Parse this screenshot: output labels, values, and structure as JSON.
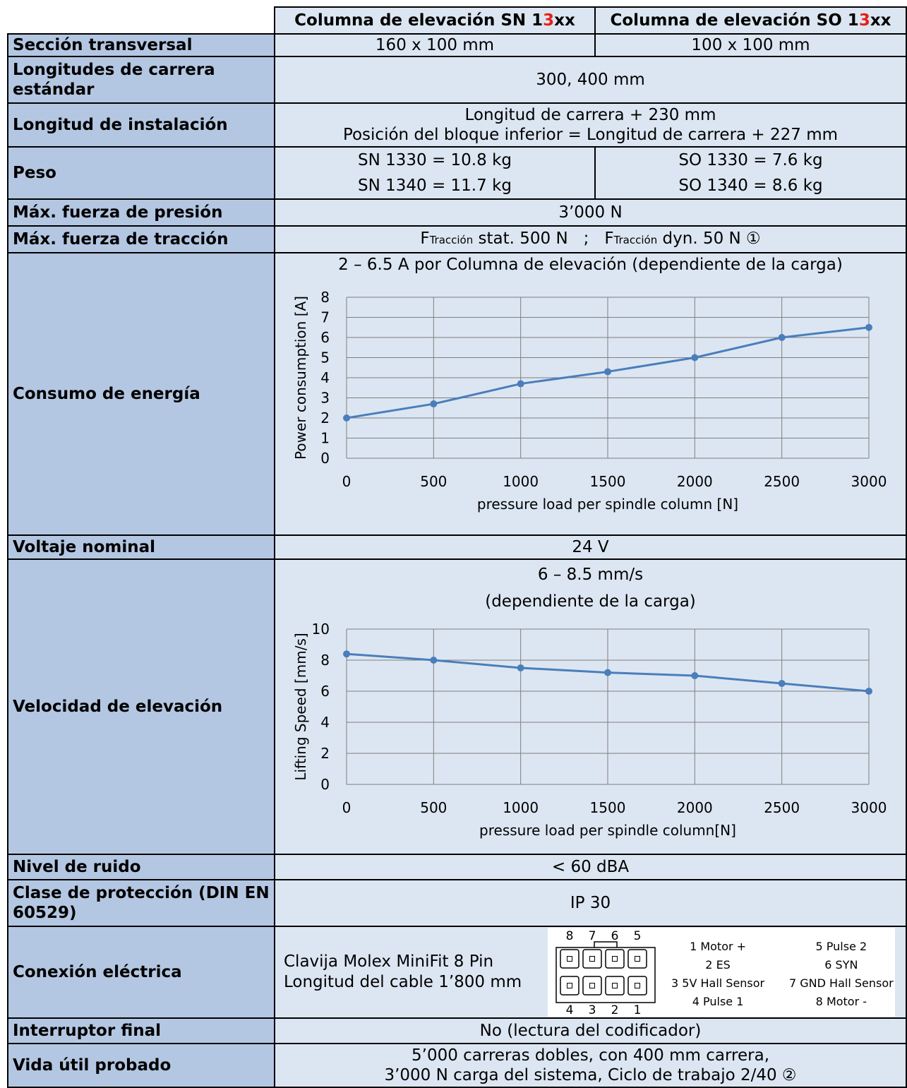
{
  "header": {
    "col1": {
      "pre": "Columna de elevación SN 1",
      "mid": "3",
      "post": "xx"
    },
    "col2": {
      "pre": "Columna de elevación SO 1",
      "mid": "3",
      "post": "xx"
    }
  },
  "rows": {
    "seccion": {
      "label": "Sección transversal",
      "sn": "160 x 100 mm",
      "so": "100 x 100 mm"
    },
    "carrera": {
      "label": "Longitudes de carrera estándar",
      "value": "300, 400 mm"
    },
    "instalacion": {
      "label": "Longitud de instalación",
      "line1": "Longitud de carrera + 230 mm",
      "line2": "Posición del bloque inferior = Longitud de carrera + 227 mm"
    },
    "peso": {
      "label": "Peso",
      "sn1": "SN 1330 = 10.8 kg",
      "sn2": "SN 1340 = 11.7 kg",
      "so1": "SO 1330 = 7.6 kg",
      "so2": "SO 1340 = 8.6 kg"
    },
    "presion": {
      "label": "Máx. fuerza de presión",
      "value": "3’000 N"
    },
    "traccion": {
      "label": "Máx. fuerza de tracción",
      "f1": "F",
      "sub1": "Tracción",
      "t1": " stat. 500 N   ;   ",
      "f2": "F",
      "sub2": "Tracción",
      "t2": " dyn. 50 N ①"
    },
    "consumo": {
      "label": "Consumo de energía",
      "title": "2 – 6.5 A por Columna de elevación (dependiente de la carga)"
    },
    "voltaje": {
      "label": "Voltaje nominal",
      "value": "24 V"
    },
    "velocidad": {
      "label": "Velocidad de elevación",
      "title1": "6 – 8.5 mm/s",
      "title2": "(dependiente de la carga)"
    },
    "ruido": {
      "label": "Nivel de ruido",
      "value": "< 60 dBA"
    },
    "proteccion": {
      "label": "Clase de protección (DIN EN 60529)",
      "value": "IP 30"
    },
    "conexion": {
      "label": "Conexión eléctrica",
      "line1": "Clavija Molex MiniFit 8 Pin",
      "line2": "Longitud del cable 1’800 mm",
      "top_numbers": [
        "8",
        "7",
        "6",
        "5"
      ],
      "bottom_numbers": [
        "4",
        "3",
        "2",
        "1"
      ],
      "pins_left": [
        "1  Motor +",
        "2  ES",
        "3  5V Hall Sensor",
        "4  Pulse 1"
      ],
      "pins_right": [
        "5  Pulse 2",
        "6  SYN",
        "7  GND Hall Sensor",
        "8  Motor -"
      ]
    },
    "interruptor": {
      "label": "Interruptor final",
      "value": "No (lectura del codificador)"
    },
    "vida": {
      "label": "Vida útil probado",
      "line1": "5’000 carreras dobles, con 400 mm carrera,",
      "line2": "3’000 N carga del sistema, Ciclo de trabajo 2/40 ②"
    }
  },
  "chart_data": [
    {
      "type": "line",
      "x": [
        0,
        500,
        1000,
        1500,
        2000,
        2500,
        3000
      ],
      "series": [
        {
          "values": [
            2,
            2.7,
            3.7,
            4.3,
            5,
            6,
            6.5
          ]
        }
      ],
      "xlabel": "pressure load per spindle column [N]",
      "ylabel": "Power consumption [A]",
      "xlim": [
        0,
        3000
      ],
      "ylim": [
        0,
        8
      ],
      "yticks": [
        0,
        1,
        2,
        3,
        4,
        5,
        6,
        7,
        8
      ],
      "xticks": [
        0,
        500,
        1000,
        1500,
        2000,
        2500,
        3000
      ],
      "grid": true,
      "color": "#4a7ebb"
    },
    {
      "type": "line",
      "x": [
        0,
        500,
        1000,
        1500,
        2000,
        2500,
        3000
      ],
      "series": [
        {
          "values": [
            8.4,
            8,
            7.5,
            7.2,
            7,
            6.5,
            6
          ]
        }
      ],
      "xlabel": "pressure load per spindle column[N]",
      "ylabel": "Lifting Speed [mm/s]",
      "xlim": [
        0,
        3000
      ],
      "ylim": [
        0,
        10
      ],
      "yticks": [
        0,
        2,
        4,
        6,
        8,
        10
      ],
      "xticks": [
        0,
        500,
        1000,
        1500,
        2000,
        2500,
        3000
      ],
      "grid": true,
      "color": "#4a7ebb"
    }
  ]
}
